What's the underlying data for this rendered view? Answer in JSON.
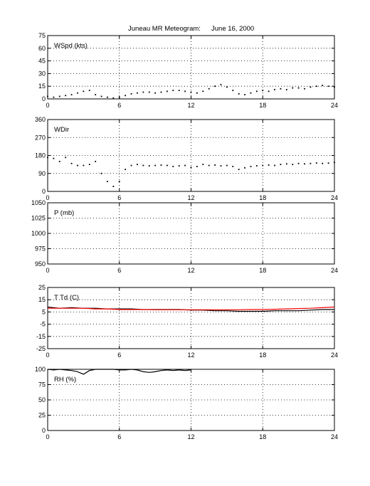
{
  "figure": {
    "title_station": "Juneau MR Meteogram:",
    "title_date": "June 16, 2000"
  },
  "chart_data": [
    {
      "type": "scatter",
      "ylabel": "WSpd (kts)",
      "xlim": [
        0,
        24
      ],
      "ylim": [
        0,
        75
      ],
      "xticks": [
        "0",
        "6",
        "12",
        "18",
        "24"
      ],
      "yticks": [
        "0",
        "15",
        "30",
        "45",
        "60",
        "75"
      ],
      "grid": true,
      "series": [
        {
          "color": "#000000",
          "x": [
            0.0,
            0.5,
            1.0,
            1.5,
            2.0,
            2.5,
            3.0,
            3.5,
            4.0,
            4.5,
            5.0,
            5.5,
            6.0,
            6.5,
            7.0,
            7.5,
            8.0,
            8.5,
            9.0,
            9.5,
            10.0,
            10.5,
            11.0,
            11.5,
            12.0,
            12.5,
            13.0,
            13.5,
            14.0,
            14.5,
            15.0,
            15.5,
            16.0,
            16.5,
            17.0,
            17.5,
            18.0,
            18.5,
            19.0,
            19.5,
            20.0,
            20.5,
            21.0,
            21.5,
            22.0,
            22.5,
            23.0,
            23.5,
            24.0
          ],
          "values": [
            3,
            2,
            3,
            4,
            5,
            7,
            9,
            10,
            5,
            3,
            2,
            1,
            2,
            4,
            6,
            7,
            8,
            8,
            7,
            8,
            9,
            10,
            10,
            9,
            8,
            7,
            9,
            12,
            15,
            17,
            14,
            10,
            6,
            5,
            7,
            9,
            10,
            9,
            11,
            12,
            11,
            13,
            13,
            12,
            14,
            15,
            16,
            15,
            14
          ]
        }
      ]
    },
    {
      "type": "scatter",
      "ylabel": "WDir",
      "xlim": [
        0,
        24
      ],
      "ylim": [
        0,
        360
      ],
      "xticks": [
        "0",
        "6",
        "12",
        "18",
        "24"
      ],
      "yticks": [
        "0",
        "90",
        "180",
        "270",
        "360"
      ],
      "grid": true,
      "series": [
        {
          "color": "#000000",
          "x": [
            0.0,
            0.5,
            1.0,
            1.5,
            2.0,
            2.5,
            3.0,
            3.5,
            4.0,
            4.5,
            5.0,
            5.5,
            6.0,
            6.5,
            7.0,
            7.5,
            8.0,
            8.5,
            9.0,
            9.5,
            10.0,
            10.5,
            11.0,
            11.5,
            12.0,
            12.5,
            13.0,
            13.5,
            14.0,
            14.5,
            15.0,
            15.5,
            16.0,
            16.5,
            17.0,
            17.5,
            18.0,
            18.5,
            19.0,
            19.5,
            20.0,
            20.5,
            21.0,
            21.5,
            22.0,
            22.5,
            23.0,
            23.5,
            24.0
          ],
          "values": [
            170,
            165,
            150,
            170,
            140,
            130,
            130,
            135,
            150,
            90,
            50,
            25,
            50,
            110,
            130,
            135,
            130,
            128,
            130,
            132,
            130,
            125,
            128,
            130,
            120,
            125,
            135,
            130,
            132,
            128,
            130,
            125,
            110,
            118,
            125,
            128,
            130,
            132,
            130,
            135,
            138,
            135,
            140,
            138,
            140,
            142,
            140,
            142,
            145
          ]
        }
      ]
    },
    {
      "type": "line",
      "ylabel": "P (mb)",
      "xlim": [
        0,
        24
      ],
      "ylim": [
        950,
        1050
      ],
      "xticks": [
        "0",
        "6",
        "12",
        "18",
        "24"
      ],
      "yticks": [
        "950",
        "975",
        "1000",
        "1025",
        "1050"
      ],
      "grid": true,
      "series": []
    },
    {
      "type": "line",
      "ylabel": "T Td (C)",
      "xlim": [
        0,
        24
      ],
      "ylim": [
        -25,
        25
      ],
      "xticks": [
        "0",
        "6",
        "12",
        "18",
        "24"
      ],
      "yticks": [
        "-25",
        "-15",
        "-5",
        "5",
        "15",
        "25"
      ],
      "grid": true,
      "series": [
        {
          "color": "#000000",
          "x": [
            0,
            1,
            2,
            3,
            4,
            5,
            6,
            7,
            8,
            9,
            10,
            11,
            12,
            13,
            14,
            15,
            16,
            17,
            18,
            19,
            20,
            21,
            22,
            23,
            24
          ],
          "values": [
            9,
            8,
            8.5,
            8,
            8,
            7.5,
            7.5,
            7.5,
            7,
            7,
            7,
            7,
            6.5,
            6.5,
            6,
            6,
            5.5,
            5.5,
            5.5,
            6,
            6,
            6,
            6.5,
            7,
            7
          ]
        },
        {
          "color": "#ff0000",
          "x": [
            0,
            1,
            2,
            3,
            4,
            5,
            6,
            7,
            8,
            9,
            10,
            11,
            12,
            13,
            14,
            15,
            16,
            17,
            18,
            19,
            20,
            21,
            22,
            23,
            24
          ],
          "values": [
            8,
            8,
            8,
            8,
            7.5,
            7.5,
            7,
            7,
            7,
            6.8,
            6.8,
            6.8,
            6.8,
            6.8,
            6.8,
            6.8,
            6.8,
            7,
            7,
            7.2,
            7.5,
            7.8,
            8,
            8.5,
            9
          ]
        }
      ]
    },
    {
      "type": "line",
      "ylabel": "RH (%)",
      "xlim": [
        0,
        24
      ],
      "ylim": [
        0,
        100
      ],
      "xticks": [
        "0",
        "6",
        "12",
        "18",
        "24"
      ],
      "yticks": [
        "0",
        "25",
        "50",
        "75",
        "100"
      ],
      "grid": true,
      "series": [
        {
          "color": "#000000",
          "x": [
            0,
            0.5,
            1,
            1.5,
            2,
            2.5,
            3,
            3.5,
            4,
            4.5,
            5,
            5.5,
            6,
            6.5,
            7,
            7.5,
            8,
            8.5,
            9,
            9.5,
            10,
            10.5,
            11,
            11.5,
            12
          ],
          "values": [
            100,
            99,
            100,
            99,
            98,
            96,
            92,
            98,
            100,
            100,
            100,
            100,
            99,
            99,
            100,
            99,
            96,
            95,
            96,
            98,
            99,
            98,
            99,
            98,
            99
          ]
        }
      ]
    }
  ]
}
